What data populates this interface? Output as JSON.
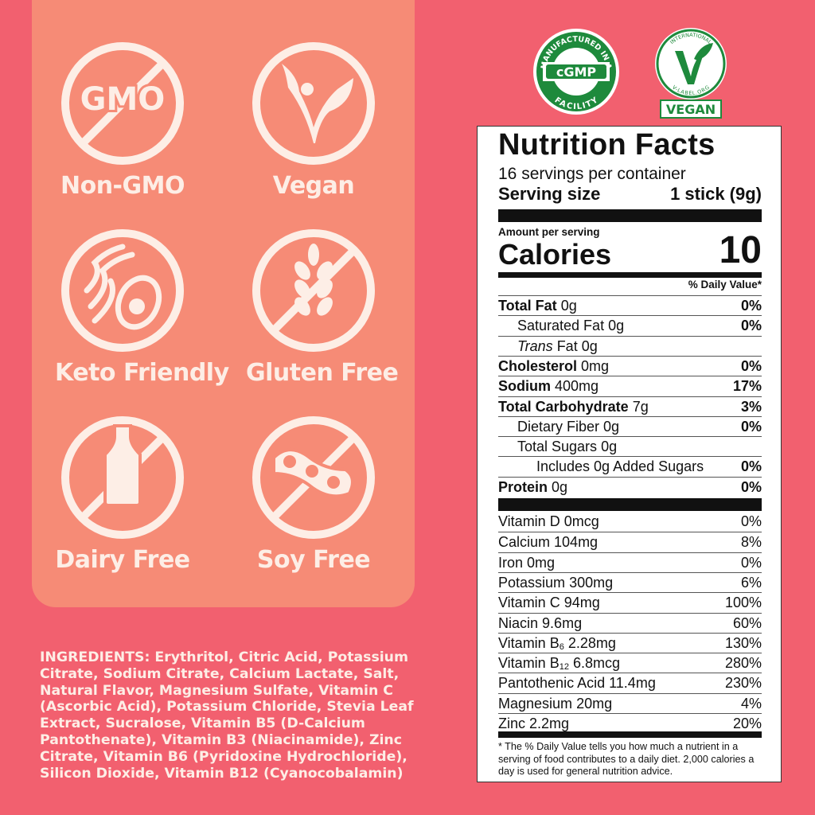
{
  "badges": [
    {
      "label": "Non-GMO",
      "icon": "no-gmo-icon",
      "icon_text": "GMO"
    },
    {
      "label": "Vegan",
      "icon": "vegan-leaf-icon"
    },
    {
      "label": "Keto Friendly",
      "icon": "keto-avocado-icon"
    },
    {
      "label": "Gluten Free",
      "icon": "no-wheat-icon"
    },
    {
      "label": "Dairy Free",
      "icon": "no-milk-bottle-icon"
    },
    {
      "label": "Soy Free",
      "icon": "no-soy-icon"
    }
  ],
  "logos": {
    "cgmp": {
      "top_text": "MANUFACTURED IN A",
      "center_text": "cGMP",
      "bottom_text": "FACILITY"
    },
    "vegan": {
      "top_text": "INTERNATIONAL",
      "bottom_text": "V-LABEL.ORG",
      "label": "VEGAN"
    }
  },
  "ingredients": {
    "heading": "INGREDIENTS:",
    "text": " Erythritol, Citric Acid, Potassium Citrate, Sodium Citrate, Calcium Lactate, Salt, Natural Flavor, Magnesium Sulfate, Vitamin C (Ascorbic Acid), Potassium Chloride, Stevia Leaf Extract, Sucralose, Vitamin B5 (D-Calcium Pantothenate), Vitamin B3 (Niacinamide), Zinc Citrate, Vitamin B6 (Pyridoxine Hydrochloride), Silicon Dioxide, Vitamin B12 (Cyanocobalamin)"
  },
  "nutrition": {
    "title": "Nutrition Facts",
    "servings": "16 servings per container",
    "serving_size_label": "Serving size",
    "serving_size_value": "1 stick (9g)",
    "amount_per_serving": "Amount per serving",
    "calories_label": "Calories",
    "calories_value": "10",
    "daily_value_header": "% Daily Value*",
    "macros": [
      {
        "name": "Total Fat",
        "amount": "0g",
        "dv": "0%",
        "bold": true,
        "indent": 0
      },
      {
        "name": "Saturated Fat",
        "amount": "0g",
        "dv": "0%",
        "bold": false,
        "indent": 1
      },
      {
        "name": "Trans",
        "name_suffix": " Fat",
        "amount": "0g",
        "dv": "",
        "bold": false,
        "indent": 1,
        "italic": true
      },
      {
        "name": "Cholesterol",
        "amount": "0mg",
        "dv": "0%",
        "bold": true,
        "indent": 0
      },
      {
        "name": "Sodium",
        "amount": "400mg",
        "dv": "17%",
        "bold": true,
        "indent": 0
      },
      {
        "name": "Total Carbohydrate",
        "amount": "7g",
        "dv": "3%",
        "bold": true,
        "indent": 0
      },
      {
        "name": "Dietary Fiber",
        "amount": "0g",
        "dv": "0%",
        "bold": false,
        "indent": 1
      },
      {
        "name": "Total Sugars",
        "amount": "0g",
        "dv": "",
        "bold": false,
        "indent": 1
      },
      {
        "name": "Includes 0g Added Sugars",
        "amount": "",
        "dv": "0%",
        "bold": false,
        "indent": 2
      },
      {
        "name": "Protein",
        "amount": "0g",
        "dv": "0%",
        "bold": true,
        "indent": 0
      }
    ],
    "micros": [
      {
        "name": "Vitamin D",
        "amount": "0mcg",
        "dv": "0%"
      },
      {
        "name": "Calcium",
        "amount": "104mg",
        "dv": "8%"
      },
      {
        "name": "Iron",
        "amount": "0mg",
        "dv": "0%"
      },
      {
        "name": "Potassium",
        "amount": "300mg",
        "dv": "6%"
      },
      {
        "name": "Vitamin C",
        "amount": "94mg",
        "dv": "100%"
      },
      {
        "name": "Niacin",
        "amount": "9.6mg",
        "dv": "60%"
      },
      {
        "name": "Vitamin B",
        "sub": "6",
        "amount": "2.28mg",
        "dv": "130%"
      },
      {
        "name": "Vitamin B",
        "sub": "12",
        "amount": "6.8mcg",
        "dv": "280%"
      },
      {
        "name": "Pantothenic Acid",
        "amount": "11.4mg",
        "dv": "230%"
      },
      {
        "name": "Magnesium",
        "amount": "20mg",
        "dv": "4%"
      },
      {
        "name": "Zinc",
        "amount": "2.2mg",
        "dv": "20%"
      }
    ],
    "footnote": "* The % Daily Value tells you how much a nutrient in a serving of food contributes to a daily diet. 2,000 calories a day is used for general nutrition advice."
  },
  "colors": {
    "background": "#f2606f",
    "panel": "#f68b76",
    "icon": "#fdeee6",
    "logo_green": "#1e8a3c"
  }
}
